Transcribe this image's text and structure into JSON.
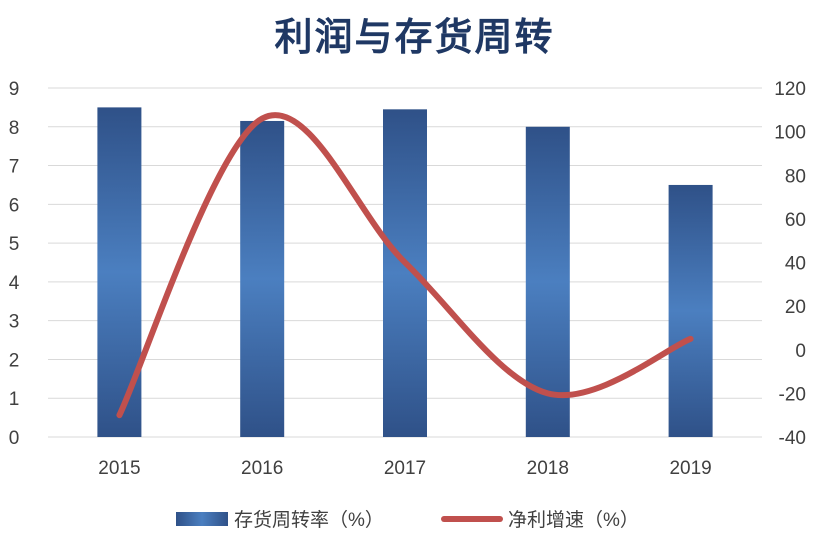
{
  "chart_data": {
    "type": "bar",
    "title": "利润与存货周转",
    "categories": [
      "2015",
      "2016",
      "2017",
      "2018",
      "2019"
    ],
    "series": [
      {
        "name": "存货周转率（%）",
        "type": "bar",
        "axis": "left",
        "values": [
          8.5,
          8.15,
          8.45,
          8.0,
          6.5
        ]
      },
      {
        "name": "净利增速（%）",
        "type": "line",
        "smooth": true,
        "axis": "right",
        "values": [
          -30,
          106,
          40,
          -20,
          5
        ]
      }
    ],
    "left_axis": {
      "ylim": [
        0,
        9
      ],
      "ticks": [
        "0",
        "1",
        "2",
        "3",
        "4",
        "5",
        "6",
        "7",
        "8",
        "9"
      ]
    },
    "right_axis": {
      "ylim": [
        -40,
        120
      ],
      "ticks": [
        "-40",
        "-20",
        "0",
        "20",
        "40",
        "60",
        "80",
        "100",
        "120"
      ]
    },
    "grid": true,
    "legend_position": "bottom",
    "colors": {
      "bar_dark": "#2f5188",
      "bar_light": "#4b7fc0",
      "line": "#c0504d",
      "grid": "#d9d9d9",
      "title": "#1f3864"
    }
  }
}
